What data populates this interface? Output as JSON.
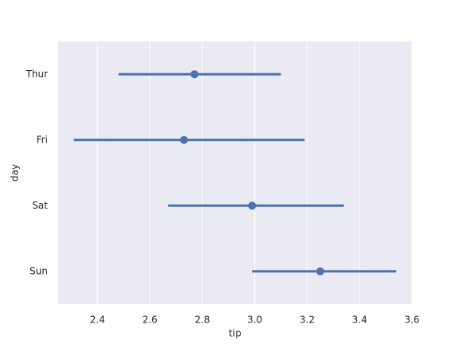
{
  "chart_data": {
    "type": "pointplot",
    "orientation": "horizontal",
    "xlabel": "tip",
    "ylabel": "day",
    "categories": [
      "Thur",
      "Fri",
      "Sat",
      "Sun"
    ],
    "series": [
      {
        "color": "#4c72b0",
        "values": [
          2.77,
          2.73,
          2.99,
          3.25
        ],
        "lower": [
          2.48,
          2.31,
          2.67,
          2.99
        ],
        "upper": [
          3.1,
          3.19,
          3.34,
          3.54
        ]
      }
    ],
    "xlim": [
      2.25,
      3.6
    ],
    "xticks": [
      {
        "value": 2.4,
        "label": "2.4"
      },
      {
        "value": 2.6,
        "label": "2.6"
      },
      {
        "value": 2.8,
        "label": "2.8"
      },
      {
        "value": 3.0,
        "label": "3.0"
      },
      {
        "value": 3.2,
        "label": "3.2"
      },
      {
        "value": 3.4,
        "label": "3.4"
      },
      {
        "value": 3.6,
        "label": "3.6"
      }
    ],
    "grid": true,
    "background": "#eaeaf2"
  }
}
